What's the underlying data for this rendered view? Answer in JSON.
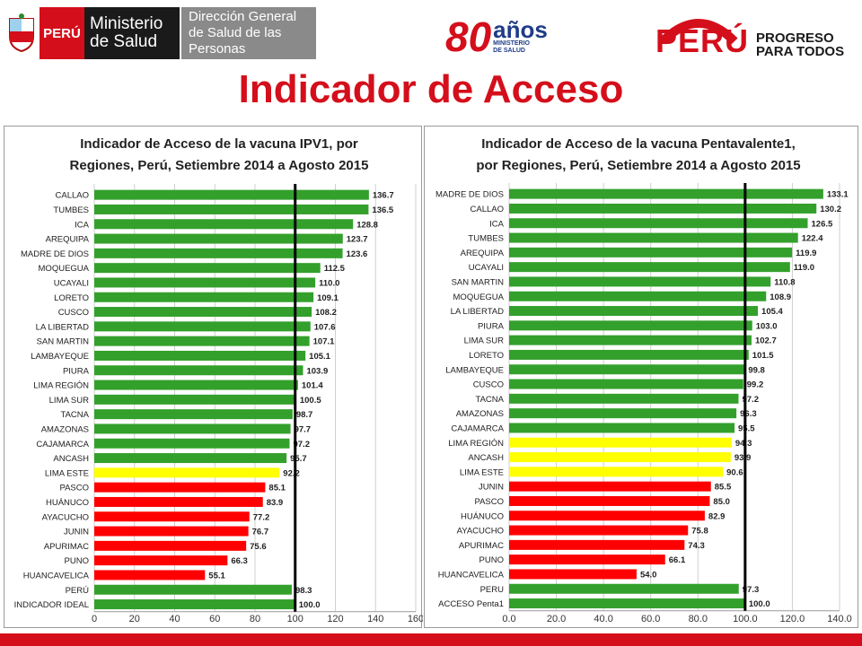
{
  "header": {
    "minsa_logo": {
      "country": "PERÚ",
      "line1": "Ministerio",
      "line2": "de Salud",
      "dir1": "Dirección General",
      "dir2": "de Salud de las Personas"
    },
    "anniversary_logo": {
      "number": "80",
      "word": "años",
      "sub1": "MINISTERIO",
      "sub2": "DE SALUD"
    },
    "gov_logo": {
      "word": "PERÚ",
      "tag1": "PROGRESO",
      "tag2": "PARA TODOS"
    }
  },
  "page_title": "Indicador de Acceso",
  "colors": {
    "green": "#33a02c",
    "yellow": "#ffff00",
    "red": "#ff0000",
    "accent_red": "#d40f1b"
  },
  "chart_data": [
    {
      "type": "bar",
      "orientation": "horizontal",
      "title_line1": "Indicador de Acceso de la vacuna IPV1, por",
      "title_line2": "Regiones, Perú, Setiembre 2014 a Agosto 2015",
      "xlim": [
        0,
        160
      ],
      "xticks": [
        "0",
        "20",
        "40",
        "60",
        "80",
        "100",
        "120",
        "140",
        "160"
      ],
      "reference_line": 100,
      "grid": true,
      "categories": [
        "CALLAO",
        "TUMBES",
        "ICA",
        "AREQUIPA",
        "MADRE DE DIOS",
        "MOQUEGUA",
        "UCAYALI",
        "LORETO",
        "CUSCO",
        "LA LIBERTAD",
        "SAN MARTIN",
        "LAMBAYEQUE",
        "PIURA",
        "LIMA REGIÓN",
        "LIMA SUR",
        "TACNA",
        "AMAZONAS",
        "CAJAMARCA",
        "ANCASH",
        "LIMA ESTE",
        "PASCO",
        "HUÁNUCO",
        "AYACUCHO",
        "JUNIN",
        "APURIMAC",
        "PUNO",
        "HUANCAVELICA",
        "PERÚ",
        "INDICADOR IDEAL"
      ],
      "values": [
        136.7,
        136.5,
        128.8,
        123.7,
        123.6,
        112.5,
        110.0,
        109.1,
        108.2,
        107.6,
        107.1,
        105.1,
        103.9,
        101.4,
        100.5,
        98.7,
        97.7,
        97.2,
        95.7,
        92.2,
        85.1,
        83.9,
        77.2,
        76.7,
        75.6,
        66.3,
        55.1,
        98.3,
        100.0
      ],
      "labels": [
        "136.7",
        "136.5",
        "128.8",
        "123.7",
        "123.6",
        "112.5",
        "110.0",
        "109.1",
        "108.2",
        "107.6",
        "107.1",
        "105.1",
        "103.9",
        "101.4",
        "100.5",
        "98.7",
        "97.7",
        "97.2",
        "95.7",
        "92.2",
        "85.1",
        "83.9",
        "77.2",
        "76.7",
        "75.6",
        "66.3",
        "55.1",
        "98.3",
        "100.0"
      ],
      "colors": [
        "green",
        "green",
        "green",
        "green",
        "green",
        "green",
        "green",
        "green",
        "green",
        "green",
        "green",
        "green",
        "green",
        "green",
        "green",
        "green",
        "green",
        "green",
        "green",
        "yellow",
        "red",
        "red",
        "red",
        "red",
        "red",
        "red",
        "red",
        "green",
        "green"
      ]
    },
    {
      "type": "bar",
      "orientation": "horizontal",
      "title_line1": "Indicador de Acceso de la vacuna Pentavalente1,",
      "title_line2": "por Regiones, Perú, Setiembre 2014 a Agosto 2015",
      "xlim": [
        0,
        140
      ],
      "xticks": [
        "0.0",
        "20.0",
        "40.0",
        "60.0",
        "80.0",
        "100.0",
        "120.0",
        "140.0"
      ],
      "reference_line": 100,
      "grid": true,
      "categories": [
        "MADRE DE DIOS",
        "CALLAO",
        "ICA",
        "TUMBES",
        "AREQUIPA",
        "UCAYALI",
        "SAN MARTIN",
        "MOQUEGUA",
        "LA LIBERTAD",
        "PIURA",
        "LIMA SUR",
        "LORETO",
        "LAMBAYEQUE",
        "CUSCO",
        "TACNA",
        "AMAZONAS",
        "CAJAMARCA",
        "LIMA REGIÓN",
        "ANCASH",
        "LIMA ESTE",
        "JUNIN",
        "PASCO",
        "HUÁNUCO",
        "AYACUCHO",
        "APURIMAC",
        "PUNO",
        "HUANCAVELICA",
        "PERU",
        "ACCESO Penta1"
      ],
      "values": [
        133.1,
        130.2,
        126.5,
        122.4,
        119.9,
        119.0,
        110.8,
        108.9,
        105.4,
        103.0,
        102.7,
        101.5,
        99.8,
        99.2,
        97.2,
        96.3,
        95.5,
        94.3,
        93.9,
        90.6,
        85.5,
        85.0,
        82.9,
        75.8,
        74.3,
        66.1,
        54.0,
        97.3,
        100.0
      ],
      "labels": [
        "133.1",
        "130.2",
        "126.5",
        "122.4",
        "119.9",
        "119.0",
        "110.8",
        "108.9",
        "105.4",
        "103.0",
        "102.7",
        "101.5",
        "99.8",
        "99.2",
        "97.2",
        "96.3",
        "95.5",
        "94.3",
        "93.9",
        "90.6",
        "85.5",
        "85.0",
        "82.9",
        "75.8",
        "74.3",
        "66.1",
        "54.0",
        "97.3",
        "100.0"
      ],
      "colors": [
        "green",
        "green",
        "green",
        "green",
        "green",
        "green",
        "green",
        "green",
        "green",
        "green",
        "green",
        "green",
        "green",
        "green",
        "green",
        "green",
        "green",
        "yellow",
        "yellow",
        "yellow",
        "red",
        "red",
        "red",
        "red",
        "red",
        "red",
        "red",
        "green",
        "green"
      ]
    }
  ]
}
